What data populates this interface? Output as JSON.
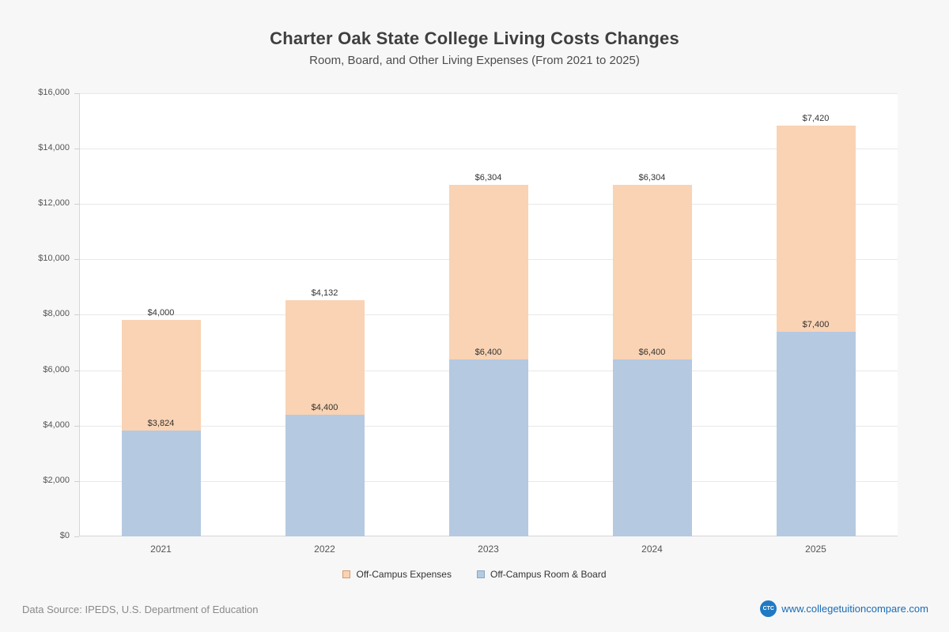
{
  "chart_data": {
    "type": "bar",
    "stacked": true,
    "title": "Charter Oak State College Living Costs Changes",
    "subtitle": "Room, Board, and Other Living Expenses (From 2021 to 2025)",
    "categories": [
      "2021",
      "2022",
      "2023",
      "2024",
      "2025"
    ],
    "series": [
      {
        "name": "Off-Campus Room & Board",
        "color": "#b5c9e1",
        "values": [
          3824,
          4400,
          6400,
          6400,
          7400
        ],
        "labels": [
          "$3,824",
          "$4,400",
          "$6,400",
          "$6,400",
          "$7,400"
        ]
      },
      {
        "name": "Off-Campus Expenses",
        "color": "#f9d3b3",
        "values": [
          4000,
          4132,
          6304,
          6304,
          7420
        ],
        "labels": [
          "$4,000",
          "$4,132",
          "$6,304",
          "$6,304",
          "$7,420"
        ]
      }
    ],
    "ylim": [
      0,
      16000
    ],
    "ytick_step": 2000,
    "yticks": [
      "$0",
      "$2,000",
      "$4,000",
      "$6,000",
      "$8,000",
      "$10,000",
      "$12,000",
      "$14,000",
      "$16,000"
    ],
    "grid": true,
    "legend_position": "bottom",
    "legend": [
      {
        "label": "Off-Campus Expenses",
        "color": "#f9d3b3",
        "border": "#d69c6d"
      },
      {
        "label": "Off-Campus Room & Board",
        "color": "#b5c9e1",
        "border": "#8aa6c4"
      }
    ]
  },
  "footer": {
    "source": "Data Source: IPEDS, U.S. Department of Education",
    "logo_text": "CTC",
    "site": "www.collegetuitioncompare.com"
  }
}
